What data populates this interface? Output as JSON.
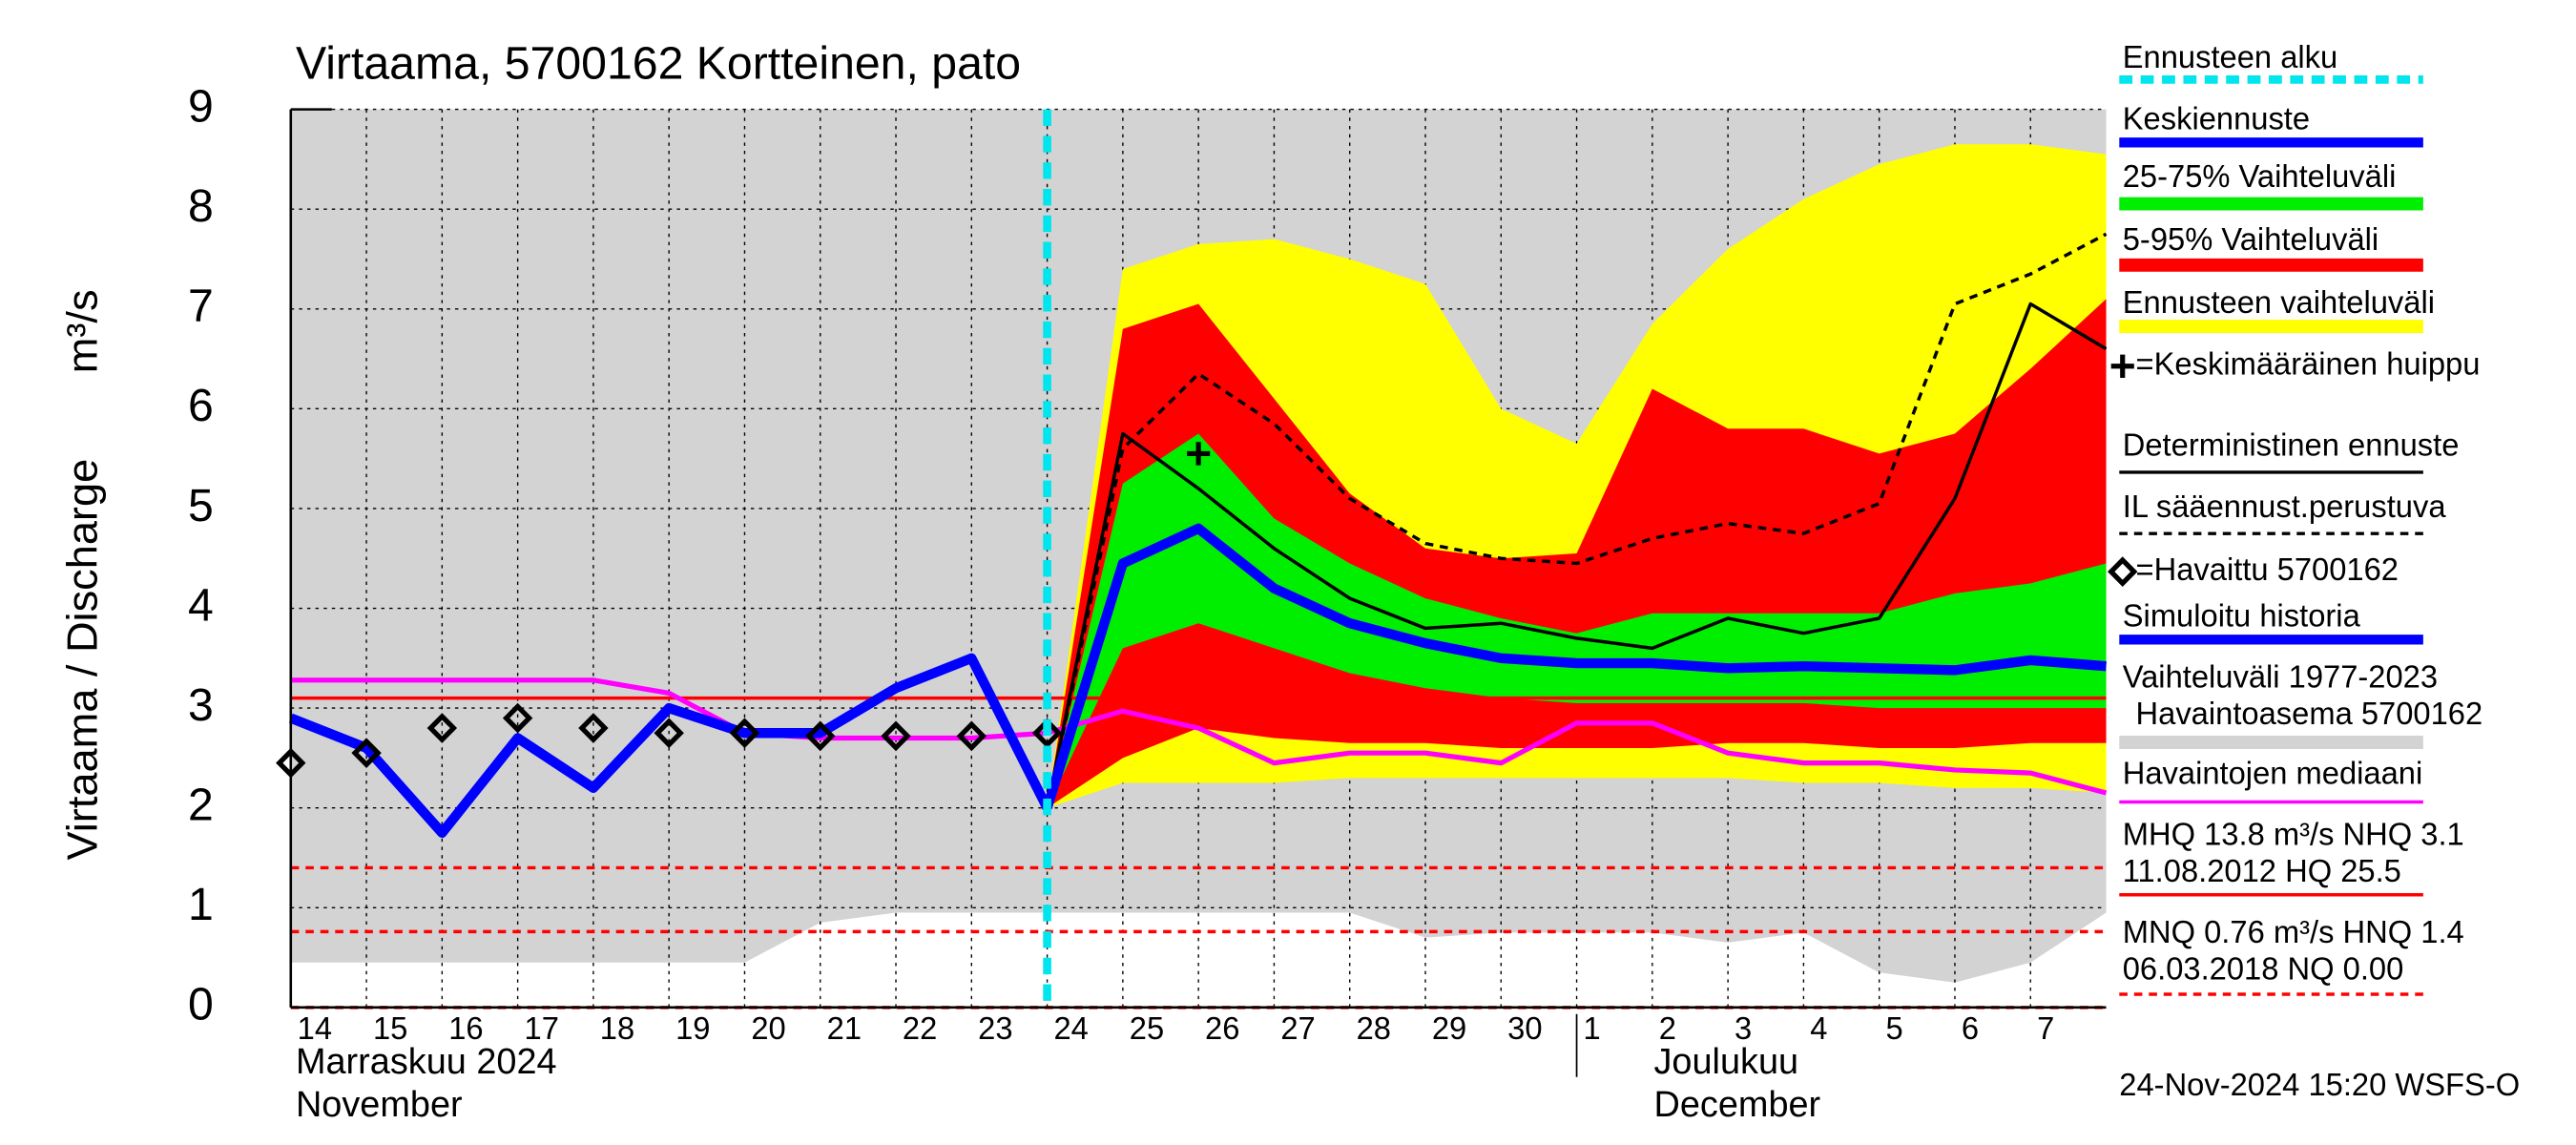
{
  "chart_data": {
    "type": "line",
    "title": "Virtaama, 5700162 Kortteinen, pato",
    "y_label": "Virtaama / Discharge",
    "y_unit": "m³/s",
    "footer": "24-Nov-2024 15:20 WSFS-O",
    "categories": [
      "14",
      "15",
      "16",
      "17",
      "18",
      "19",
      "20",
      "21",
      "22",
      "23",
      "24",
      "25",
      "26",
      "27",
      "28",
      "29",
      "30",
      "1",
      "2",
      "3",
      "4",
      "5",
      "6",
      "7",
      null
    ],
    "x_groups": [
      {
        "at": "14",
        "lines": [
          "Marraskuu 2024",
          "November"
        ]
      },
      {
        "at": "1",
        "lines": [
          "Joulukuu",
          "December"
        ]
      }
    ],
    "ylim": [
      0,
      9
    ],
    "yticks": [
      0,
      1,
      2,
      3,
      4,
      5,
      6,
      7,
      8,
      9
    ],
    "grid": true,
    "forecast_start": {
      "name": "Ennusteen alku",
      "at": "24",
      "color": "#00e5ee"
    },
    "series": [
      {
        "name": "Keskiennuste",
        "kind": "line",
        "color": "#0000ff",
        "width": 6,
        "values": [
          null,
          null,
          null,
          null,
          null,
          null,
          null,
          null,
          null,
          null,
          2.0,
          4.45,
          4.8,
          4.2,
          3.85,
          3.65,
          3.5,
          3.45,
          3.45,
          3.4,
          3.42,
          3.4,
          3.38,
          3.48,
          3.42
        ]
      },
      {
        "name": "25-75% Vaihteluväli",
        "kind": "band",
        "color": "#00ee00",
        "high": [
          null,
          null,
          null,
          null,
          null,
          null,
          null,
          null,
          null,
          null,
          2.0,
          5.25,
          5.75,
          4.9,
          4.45,
          4.1,
          3.9,
          3.75,
          3.95,
          3.95,
          3.95,
          3.95,
          4.15,
          4.25,
          4.45
        ],
        "low": [
          null,
          null,
          null,
          null,
          null,
          null,
          null,
          null,
          null,
          null,
          2.0,
          3.6,
          3.85,
          3.6,
          3.35,
          3.2,
          3.1,
          3.05,
          3.05,
          3.05,
          3.05,
          3.0,
          3.0,
          3.0,
          3.0
        ]
      },
      {
        "name": "5-95% Vaihteluväli",
        "kind": "band",
        "color": "#ff0000",
        "high": [
          null,
          null,
          null,
          null,
          null,
          null,
          null,
          null,
          null,
          null,
          2.0,
          6.8,
          7.05,
          6.1,
          5.15,
          4.6,
          4.5,
          4.55,
          6.2,
          5.8,
          5.8,
          5.55,
          5.75,
          6.4,
          7.1
        ],
        "low": [
          null,
          null,
          null,
          null,
          null,
          null,
          null,
          null,
          null,
          null,
          2.0,
          2.5,
          2.8,
          2.7,
          2.65,
          2.65,
          2.6,
          2.6,
          2.6,
          2.65,
          2.65,
          2.6,
          2.6,
          2.65,
          2.65
        ]
      },
      {
        "name": "Ennusteen vaihteluväli",
        "kind": "band",
        "color": "#ffff00",
        "high": [
          null,
          null,
          null,
          null,
          null,
          null,
          null,
          null,
          null,
          null,
          2.0,
          7.4,
          7.65,
          7.7,
          7.5,
          7.25,
          6.0,
          5.65,
          6.85,
          7.6,
          8.1,
          8.45,
          8.65,
          8.65,
          8.55
        ],
        "low": [
          null,
          null,
          null,
          null,
          null,
          null,
          null,
          null,
          null,
          null,
          2.0,
          2.25,
          2.25,
          2.25,
          2.3,
          2.3,
          2.3,
          2.3,
          2.3,
          2.3,
          2.25,
          2.25,
          2.2,
          2.2,
          2.15
        ]
      },
      {
        "name": "=Keskimääräinen huippu",
        "kind": "marker",
        "marker": "plus",
        "color": "#000000",
        "values": [
          null,
          null,
          null,
          null,
          null,
          null,
          null,
          null,
          null,
          null,
          null,
          null,
          5.55,
          null,
          null,
          null,
          null,
          null,
          null,
          null,
          null,
          null,
          null,
          null,
          null
        ]
      },
      {
        "name": "Deterministinen ennuste",
        "kind": "line",
        "color": "#000000",
        "width": 2,
        "values": [
          null,
          null,
          null,
          null,
          null,
          null,
          null,
          null,
          null,
          null,
          2.0,
          5.75,
          5.2,
          4.6,
          4.1,
          3.8,
          3.85,
          3.7,
          3.6,
          3.9,
          3.75,
          3.9,
          5.1,
          7.05,
          6.6
        ]
      },
      {
        "name": "IL sääennust.perustuva",
        "kind": "line",
        "color": "#000000",
        "width": 2,
        "dashed": true,
        "values": [
          null,
          null,
          null,
          null,
          null,
          null,
          null,
          null,
          null,
          null,
          2.0,
          5.6,
          6.35,
          5.85,
          5.1,
          4.65,
          4.5,
          4.45,
          4.7,
          4.85,
          4.75,
          5.05,
          7.05,
          7.35,
          7.75
        ]
      },
      {
        "name": "=Havaittu 5700162",
        "kind": "marker",
        "marker": "diamond",
        "color": "#000000",
        "values": [
          2.45,
          2.55,
          2.8,
          2.9,
          2.8,
          2.75,
          2.75,
          2.72,
          2.72,
          2.72,
          2.75,
          null,
          null,
          null,
          null,
          null,
          null,
          null,
          null,
          null,
          null,
          null,
          null,
          null,
          null
        ]
      },
      {
        "name": "Simuloitu historia",
        "kind": "line",
        "color": "#0000ff",
        "width": 6,
        "values": [
          2.9,
          2.6,
          1.75,
          2.7,
          2.2,
          3.0,
          2.75,
          2.75,
          3.2,
          3.5,
          2.0,
          null,
          null,
          null,
          null,
          null,
          null,
          null,
          null,
          null,
          null,
          null,
          null,
          null,
          null
        ]
      },
      {
        "name": "Vaihteluväli 1977-2023",
        "subname": "Havaintoasema 5700162",
        "kind": "band",
        "color": "#d3d3d3",
        "high": [
          9,
          9,
          9,
          9,
          9,
          9,
          9,
          9,
          9,
          9,
          9,
          9,
          9,
          9,
          9,
          9,
          9,
          9,
          9,
          9,
          9,
          9,
          9,
          9,
          9
        ],
        "low": [
          0.45,
          0.45,
          0.45,
          0.45,
          0.45,
          0.45,
          0.45,
          0.85,
          0.95,
          0.95,
          0.95,
          0.95,
          0.95,
          0.95,
          0.95,
          0.7,
          0.75,
          0.75,
          0.75,
          0.65,
          0.75,
          0.35,
          0.25,
          0.45,
          0.95
        ]
      },
      {
        "name": "Havaintojen mediaani",
        "kind": "line",
        "color": "#ff00ff",
        "width": 3,
        "values": [
          3.28,
          3.28,
          3.28,
          3.28,
          3.28,
          3.15,
          2.75,
          2.7,
          2.7,
          2.7,
          2.75,
          2.97,
          2.8,
          2.45,
          2.55,
          2.55,
          2.45,
          2.85,
          2.85,
          2.55,
          2.45,
          2.45,
          2.38,
          2.35,
          2.15
        ]
      }
    ],
    "ref_lines": [
      {
        "value": 3.1,
        "color": "#ff0000",
        "dashed": false
      },
      {
        "value": 1.4,
        "color": "#ff0000",
        "dashed": true
      },
      {
        "value": 0.76,
        "color": "#ff0000",
        "dashed": true
      },
      {
        "value": 0,
        "color": "#ff0000",
        "dashed": true
      }
    ],
    "stats": [
      {
        "lines": [
          "MHQ 13.8 m³/s NHQ  3.1",
          "11.08.2012 HQ 25.5"
        ],
        "color": "#ff0000",
        "dashed": false
      },
      {
        "lines": [
          "MNQ 0.76 m³/s HNQ  1.4",
          "06.03.2018 NQ 0.00"
        ],
        "color": "#ff0000",
        "dashed": true
      }
    ]
  }
}
